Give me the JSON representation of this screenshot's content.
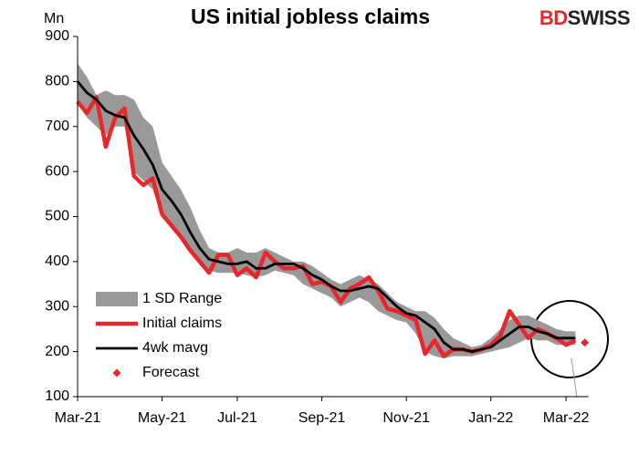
{
  "chart_data": {
    "type": "line",
    "title": "US initial jobless claims",
    "y_label": "Mn",
    "logo": [
      "BD",
      "SWISS"
    ],
    "categories": [
      "Mar-21",
      null,
      null,
      null,
      null,
      null,
      null,
      null,
      null,
      "May-21",
      null,
      null,
      null,
      null,
      null,
      null,
      null,
      "Jul-21",
      null,
      null,
      null,
      null,
      null,
      null,
      null,
      null,
      "Sep-21",
      null,
      null,
      null,
      null,
      null,
      null,
      null,
      null,
      "Nov-21",
      null,
      null,
      null,
      null,
      null,
      null,
      null,
      null,
      "Jan-22",
      null,
      null,
      null,
      null,
      null,
      null,
      null,
      "Mar-22",
      null,
      null
    ],
    "ylim": [
      100,
      900
    ],
    "yticks": [
      100,
      200,
      300,
      400,
      500,
      600,
      700,
      800,
      900
    ],
    "grid": false,
    "legend": "bottom-left",
    "series": [
      {
        "name": "1 SD Range",
        "color": "#999999",
        "high": [
          840,
          810,
          770,
          780,
          770,
          770,
          760,
          720,
          700,
          620,
          590,
          560,
          520,
          470,
          430,
          420,
          420,
          430,
          420,
          420,
          430,
          420,
          410,
          400,
          400,
          390,
          375,
          360,
          350,
          360,
          370,
          360,
          350,
          330,
          310,
          300,
          290,
          290,
          275,
          250,
          230,
          220,
          210,
          215,
          230,
          250,
          270,
          280,
          280,
          270,
          260,
          250,
          245,
          245,
          null
        ],
        "low": [
          750,
          720,
          700,
          680,
          700,
          700,
          600,
          580,
          560,
          500,
          480,
          450,
          420,
          395,
          380,
          375,
          375,
          375,
          370,
          365,
          370,
          380,
          375,
          370,
          350,
          340,
          330,
          320,
          300,
          310,
          320,
          310,
          290,
          280,
          270,
          265,
          240,
          200,
          190,
          185,
          190,
          190,
          190,
          195,
          200,
          205,
          210,
          220,
          230,
          225,
          225,
          215,
          215,
          215,
          null
        ]
      },
      {
        "name": "Initial claims",
        "color": "#e8262c",
        "values": [
          755,
          730,
          765,
          655,
          720,
          740,
          590,
          570,
          585,
          505,
          480,
          455,
          425,
          400,
          375,
          415,
          415,
          370,
          385,
          365,
          420,
          400,
          385,
          385,
          390,
          350,
          355,
          345,
          310,
          340,
          350,
          365,
          335,
          295,
          290,
          280,
          270,
          195,
          225,
          190,
          205,
          205,
          200,
          205,
          215,
          235,
          290,
          260,
          230,
          250,
          240,
          230,
          215,
          225,
          null
        ]
      },
      {
        "name": "4wk mavg",
        "color": "#000000",
        "values": [
          800,
          775,
          760,
          735,
          725,
          720,
          680,
          650,
          615,
          560,
          535,
          505,
          465,
          430,
          405,
          400,
          395,
          395,
          400,
          385,
          385,
          395,
          395,
          395,
          385,
          370,
          360,
          345,
          335,
          335,
          340,
          345,
          340,
          320,
          300,
          285,
          280,
          265,
          250,
          220,
          205,
          205,
          200,
          205,
          210,
          225,
          240,
          255,
          255,
          245,
          240,
          230,
          230,
          230,
          null
        ]
      },
      {
        "name": "Forecast",
        "color": "#e8262c",
        "values": [
          null,
          null,
          null,
          null,
          null,
          null,
          null,
          null,
          null,
          null,
          null,
          null,
          null,
          null,
          null,
          null,
          null,
          null,
          null,
          null,
          null,
          null,
          null,
          null,
          null,
          null,
          null,
          null,
          null,
          null,
          null,
          null,
          null,
          null,
          null,
          null,
          null,
          null,
          null,
          null,
          null,
          null,
          null,
          null,
          null,
          null,
          null,
          null,
          null,
          null,
          null,
          null,
          null,
          null,
          220
        ]
      }
    ]
  }
}
